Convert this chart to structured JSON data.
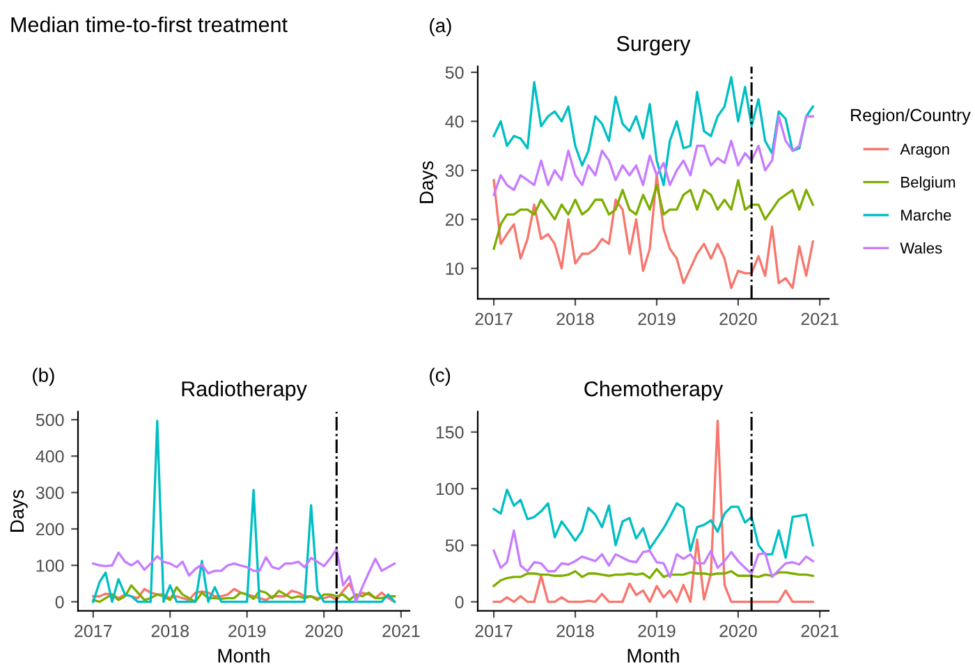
{
  "chart_data": [
    {
      "type": "line",
      "title": "Surgery",
      "ylabel": "Days",
      "annotations": [
        "Median time-to-first treatment",
        "(a)"
      ],
      "legend": "right",
      "legend_title": "Region/Country",
      "x": [
        "2017-01",
        "2017-02",
        "2017-03",
        "2017-04",
        "2017-05",
        "2017-06",
        "2017-07",
        "2017-08",
        "2017-09",
        "2017-10",
        "2017-11",
        "2017-12",
        "2018-01",
        "2018-02",
        "2018-03",
        "2018-04",
        "2018-05",
        "2018-06",
        "2018-07",
        "2018-08",
        "2018-09",
        "2018-10",
        "2018-11",
        "2018-12",
        "2019-01",
        "2019-02",
        "2019-03",
        "2019-04",
        "2019-05",
        "2019-06",
        "2019-07",
        "2019-08",
        "2019-09",
        "2019-10",
        "2019-11",
        "2019-12",
        "2020-01",
        "2020-02",
        "2020-03",
        "2020-04",
        "2020-05",
        "2020-06",
        "2020-07",
        "2020-08",
        "2020-09",
        "2020-10",
        "2020-11",
        "2020-12"
      ],
      "xlim": [
        "2016-10-21",
        "2021-02-10"
      ],
      "ylim": [
        3.8,
        51.2
      ],
      "xticks": [
        {
          "value": "2017-01-01",
          "label": "2017"
        },
        {
          "value": "2018-01-01",
          "label": "2018"
        },
        {
          "value": "2019-01-01",
          "label": "2019"
        },
        {
          "value": "2020-01-01",
          "label": "2020"
        },
        {
          "value": "2021-01-01",
          "label": "2021"
        }
      ],
      "yticks": [
        10,
        20,
        30,
        40,
        50
      ],
      "ref_lines": [
        {
          "axis": "x",
          "value": "2020-03-01",
          "color": "#000000",
          "line_style": "dashdot"
        }
      ],
      "series": [
        {
          "name": "Aragon",
          "color": "#f8766d",
          "values": [
            28,
            15,
            17,
            19,
            12,
            16,
            23,
            16,
            17,
            15,
            10,
            20,
            11,
            13,
            13,
            14,
            16,
            15,
            24,
            22,
            13,
            20,
            9.5,
            14,
            29,
            18,
            14,
            12,
            7,
            10,
            13,
            15,
            12,
            15,
            12,
            6,
            9.5,
            9,
            9,
            12.5,
            8.5,
            18.5,
            7,
            8,
            6,
            14.5,
            8.5,
            15.5
          ]
        },
        {
          "name": "Belgium",
          "color": "#7cae00",
          "values": [
            14,
            19,
            21,
            21,
            22,
            22,
            21,
            24,
            22,
            20,
            23,
            21,
            24,
            21,
            22,
            24,
            24,
            21,
            22,
            26,
            22,
            21,
            25,
            22,
            27,
            21,
            22,
            22,
            25,
            26,
            22,
            26,
            25,
            22,
            24,
            22,
            28,
            22,
            23,
            23,
            20,
            22,
            24,
            25,
            26,
            22,
            26,
            23
          ]
        },
        {
          "name": "Marche",
          "color": "#00bfc4",
          "values": [
            37,
            40,
            35,
            37,
            36.5,
            34.5,
            48,
            39,
            41,
            42,
            40,
            43,
            35,
            31,
            34,
            41,
            39.5,
            36,
            45,
            39.5,
            38,
            41,
            36.5,
            43.5,
            32,
            27,
            36,
            40,
            34.5,
            35,
            46,
            38,
            37,
            41,
            43,
            49,
            40,
            47,
            39,
            44.5,
            36,
            33.5,
            42,
            40.5,
            34,
            34.5,
            41,
            43
          ]
        },
        {
          "name": "Wales",
          "color": "#c77cff",
          "values": [
            25,
            29,
            27,
            26,
            29,
            28,
            27,
            32,
            27,
            30,
            28,
            34,
            29,
            27,
            31,
            29,
            34,
            32,
            28,
            31,
            29,
            31,
            27,
            33,
            29,
            31.5,
            27,
            30,
            32,
            29,
            35,
            35,
            31,
            32.5,
            31.5,
            36,
            31,
            33.5,
            32,
            35,
            30,
            32,
            41,
            36,
            34,
            35,
            41,
            41
          ]
        }
      ]
    },
    {
      "type": "line",
      "title": "Radiotherapy",
      "xlabel": "Month",
      "ylabel": "Days",
      "annotations": [
        "(b)"
      ],
      "x": [
        "2017-01",
        "2017-02",
        "2017-03",
        "2017-04",
        "2017-05",
        "2017-06",
        "2017-07",
        "2017-08",
        "2017-09",
        "2017-10",
        "2017-11",
        "2017-12",
        "2018-01",
        "2018-02",
        "2018-03",
        "2018-04",
        "2018-05",
        "2018-06",
        "2018-07",
        "2018-08",
        "2018-09",
        "2018-10",
        "2018-11",
        "2018-12",
        "2019-01",
        "2019-02",
        "2019-03",
        "2019-04",
        "2019-05",
        "2019-06",
        "2019-07",
        "2019-08",
        "2019-09",
        "2019-10",
        "2019-11",
        "2019-12",
        "2020-01",
        "2020-02",
        "2020-03",
        "2020-04",
        "2020-05",
        "2020-06",
        "2020-07",
        "2020-08",
        "2020-09",
        "2020-10",
        "2020-11",
        "2020-12"
      ],
      "xlim": [
        "2016-10-21",
        "2021-02-10"
      ],
      "ylim": [
        -25,
        522
      ],
      "xticks": [
        {
          "value": "2017-01-01",
          "label": "2017"
        },
        {
          "value": "2018-01-01",
          "label": "2018"
        },
        {
          "value": "2019-01-01",
          "label": "2019"
        },
        {
          "value": "2020-01-01",
          "label": "2020"
        },
        {
          "value": "2021-01-01",
          "label": "2021"
        }
      ],
      "yticks": [
        0,
        100,
        200,
        300,
        400,
        500
      ],
      "ref_lines": [
        {
          "axis": "x",
          "value": "2020-03-01",
          "color": "#000000",
          "line_style": "dashdot"
        }
      ],
      "series": [
        {
          "color": "#f8766d",
          "values": [
            15,
            15,
            22,
            20,
            10,
            20,
            15,
            10,
            35,
            25,
            20,
            20,
            10,
            15,
            10,
            5,
            25,
            28,
            25,
            15,
            15,
            20,
            35,
            25,
            20,
            15,
            10,
            5,
            15,
            15,
            15,
            30,
            25,
            15,
            15,
            10,
            10,
            15,
            5,
            30,
            50,
            10,
            25,
            20,
            10,
            25,
            10,
            0
          ]
        },
        {
          "color": "#7cae00",
          "values": [
            5,
            0,
            10,
            20,
            5,
            15,
            45,
            25,
            5,
            10,
            20,
            15,
            5,
            40,
            20,
            10,
            0,
            25,
            10,
            10,
            8,
            10,
            10,
            25,
            20,
            8,
            30,
            25,
            10,
            30,
            20,
            10,
            15,
            10,
            15,
            5,
            20,
            20,
            15,
            20,
            5,
            20,
            15,
            25,
            10,
            10,
            15,
            15
          ]
        },
        {
          "color": "#00bfc4",
          "values": [
            0,
            55,
            80,
            0,
            62,
            20,
            15,
            0,
            0,
            0,
            497,
            0,
            45,
            0,
            0,
            0,
            0,
            112,
            0,
            40,
            0,
            0,
            0,
            0,
            0,
            307,
            0,
            0,
            0,
            0,
            0,
            0,
            0,
            0,
            265,
            30,
            0,
            0,
            0,
            0,
            0,
            0,
            0,
            0,
            0,
            0,
            20,
            0
          ]
        },
        {
          "color": "#c77cff",
          "values": [
            105,
            100,
            98,
            100,
            135,
            110,
            100,
            112,
            88,
            105,
            125,
            110,
            105,
            95,
            110,
            72,
            90,
            102,
            78,
            85,
            85,
            100,
            105,
            100,
            95,
            85,
            85,
            122,
            95,
            90,
            105,
            105,
            110,
            95,
            120,
            110,
            98,
            120,
            145,
            45,
            70,
            0,
            40,
            80,
            118,
            85,
            95,
            105
          ]
        }
      ]
    },
    {
      "type": "line",
      "title": "Chemotherapy",
      "xlabel": "Month",
      "annotations": [
        "(c)"
      ],
      "x": [
        "2017-01",
        "2017-02",
        "2017-03",
        "2017-04",
        "2017-05",
        "2017-06",
        "2017-07",
        "2017-08",
        "2017-09",
        "2017-10",
        "2017-11",
        "2017-12",
        "2018-01",
        "2018-02",
        "2018-03",
        "2018-04",
        "2018-05",
        "2018-06",
        "2018-07",
        "2018-08",
        "2018-09",
        "2018-10",
        "2018-11",
        "2018-12",
        "2019-01",
        "2019-02",
        "2019-03",
        "2019-04",
        "2019-05",
        "2019-06",
        "2019-07",
        "2019-08",
        "2019-09",
        "2019-10",
        "2019-11",
        "2019-12",
        "2020-01",
        "2020-02",
        "2020-03",
        "2020-04",
        "2020-05",
        "2020-06",
        "2020-07",
        "2020-08",
        "2020-09",
        "2020-10",
        "2020-11",
        "2020-12"
      ],
      "xlim": [
        "2016-10-21",
        "2021-02-10"
      ],
      "ylim": [
        -8,
        168
      ],
      "xticks": [
        {
          "value": "2017-01-01",
          "label": "2017"
        },
        {
          "value": "2018-01-01",
          "label": "2018"
        },
        {
          "value": "2019-01-01",
          "label": "2019"
        },
        {
          "value": "2020-01-01",
          "label": "2020"
        },
        {
          "value": "2021-01-01",
          "label": "2021"
        }
      ],
      "yticks": [
        0,
        50,
        100,
        150
      ],
      "ref_lines": [
        {
          "axis": "x",
          "value": "2020-03-01",
          "color": "#000000",
          "line_style": "dashdot"
        }
      ],
      "series": [
        {
          "color": "#f8766d",
          "values": [
            0,
            0,
            4,
            0,
            5,
            0,
            0,
            23,
            0,
            0,
            4,
            0,
            0,
            0,
            1,
            0,
            7,
            0,
            0,
            0,
            16,
            6,
            10,
            0,
            14,
            4,
            10,
            0,
            15,
            0,
            55,
            2,
            25,
            160,
            15,
            0,
            0,
            0,
            0,
            0,
            0,
            0,
            0,
            10,
            0,
            0,
            0,
            0
          ]
        },
        {
          "color": "#7cae00",
          "values": [
            14,
            19,
            21,
            22,
            22,
            25,
            25,
            24,
            24,
            23,
            23,
            24,
            27,
            22,
            25,
            25,
            24,
            23,
            24,
            24,
            25,
            24,
            25,
            21,
            29,
            22,
            24,
            24,
            24,
            26,
            25,
            25,
            24,
            25,
            25,
            27,
            23,
            23,
            23,
            22,
            24,
            23,
            26,
            26,
            25,
            24,
            24,
            23
          ]
        },
        {
          "color": "#00bfc4",
          "values": [
            82,
            78,
            99,
            85,
            90,
            73,
            75,
            80,
            87,
            57,
            71,
            63,
            54,
            63,
            83,
            77,
            66,
            85,
            50,
            71,
            74,
            56,
            65,
            47,
            56,
            65,
            75,
            87,
            83,
            45,
            66,
            68,
            72,
            62,
            78,
            84,
            84,
            70,
            75,
            50,
            42,
            42,
            63,
            39,
            75,
            76,
            77,
            50
          ]
        },
        {
          "color": "#c77cff",
          "values": [
            45,
            30,
            35,
            63,
            32,
            27,
            35,
            34,
            27,
            27,
            34,
            33,
            36,
            40,
            38,
            36,
            42,
            32,
            42,
            39,
            36,
            35,
            44,
            45,
            35,
            34,
            22,
            42,
            38,
            42,
            34,
            34,
            45,
            30,
            36,
            44,
            36,
            30,
            25,
            42,
            43,
            22,
            28,
            34,
            35,
            33,
            40,
            36
          ]
        }
      ]
    }
  ]
}
